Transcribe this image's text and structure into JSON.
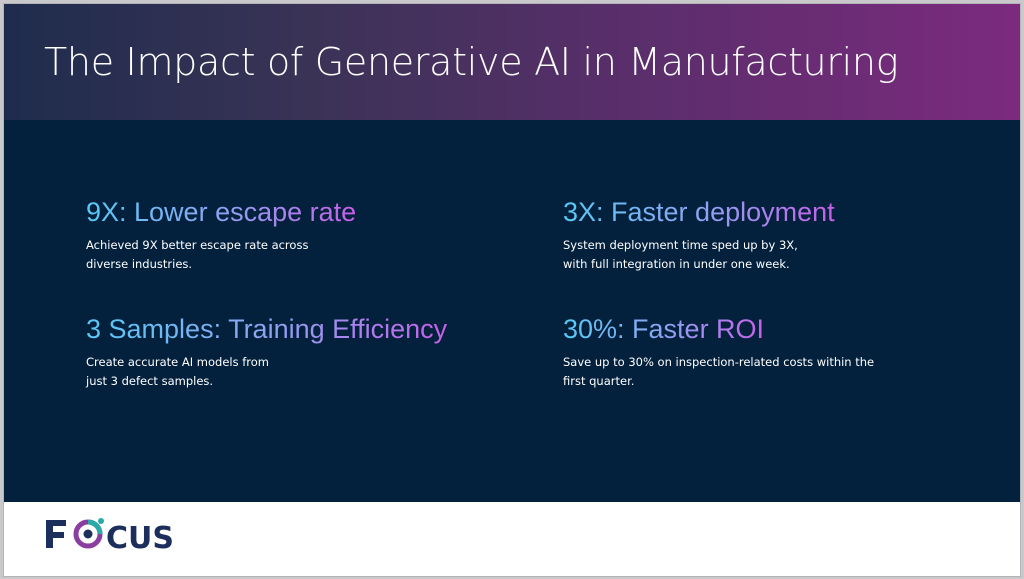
{
  "slide": {
    "title": "The Impact of Generative AI in Manufacturing"
  },
  "stats": [
    {
      "heading": "9X: Lower escape rate",
      "lines": [
        "Achieved 9X better escape rate  across",
        "diverse industries."
      ]
    },
    {
      "heading": "3X: Faster deployment",
      "lines": [
        "System deployment time sped up by 3X,",
        "with full integration in under one week."
      ]
    },
    {
      "heading": "3 Samples: Training Efficiency",
      "lines": [
        "Create accurate AI models from",
        "just 3 defect samples."
      ]
    },
    {
      "heading": "30%: Faster ROI",
      "lines": [
        "Save up to 30% on inspection-related costs within the",
        "first quarter."
      ]
    }
  ],
  "logo": {
    "text": "FOCUS",
    "icon": "aperture-target-icon",
    "colors": {
      "navy": "#1c2f5c",
      "purple": "#8a3ea0",
      "teal": "#29a9a7"
    }
  },
  "colors": {
    "header_start": "#1f2c4d",
    "header_end": "#7c2a7e",
    "body_bg": "#03213d",
    "heading_gradient_start": "#58c9f5",
    "heading_gradient_end": "#c75fe8"
  }
}
